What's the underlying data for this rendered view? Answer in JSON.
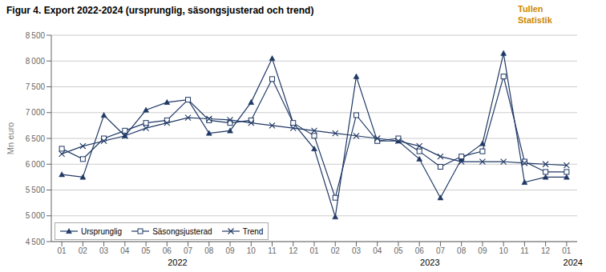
{
  "chart_data": {
    "type": "line",
    "title": "Figur 4. Export 2022-2024  (ursprunglig, säsongsjusterad  och trend)",
    "ylabel": "Mn euro",
    "categories": [
      "01",
      "02",
      "03",
      "04",
      "05",
      "06",
      "07",
      "08",
      "09",
      "10",
      "11",
      "12",
      "01",
      "02",
      "03",
      "04",
      "05",
      "06",
      "07",
      "08",
      "09",
      "10",
      "11",
      "12",
      "01"
    ],
    "series": [
      {
        "name": "Ursprunglig",
        "color": "#1F3864",
        "marker": "triangle",
        "values": [
          5800,
          5750,
          6950,
          6550,
          7050,
          7200,
          7250,
          6600,
          6650,
          7200,
          8050,
          6800,
          6300,
          4980,
          7700,
          6450,
          6450,
          6100,
          5350,
          6100,
          6400,
          8150,
          5650,
          5750,
          5750
        ]
      },
      {
        "name": "Säsongsjusterad",
        "color": "#1F3864",
        "marker": "square",
        "values": [
          6300,
          6100,
          6500,
          6650,
          6800,
          6850,
          7250,
          6850,
          6800,
          6850,
          7650,
          6800,
          6550,
          5350,
          6950,
          6450,
          6500,
          6250,
          5950,
          6150,
          6250,
          7700,
          6050,
          5850,
          5850
        ]
      },
      {
        "name": "Trend",
        "color": "#1F3864",
        "marker": "x",
        "values": [
          6200,
          6350,
          6450,
          6550,
          6700,
          6800,
          6900,
          6880,
          6860,
          6800,
          6750,
          6700,
          6650,
          6600,
          6550,
          6500,
          6450,
          6350,
          6150,
          6050,
          6050,
          6050,
          6020,
          6000,
          5980
        ]
      }
    ],
    "ylim": [
      4500,
      8500
    ],
    "yticks": [
      {
        "value": 4500,
        "label": "4 500"
      },
      {
        "value": 5000,
        "label": "5 000"
      },
      {
        "value": 5500,
        "label": "5 500"
      },
      {
        "value": 6000,
        "label": "6 000"
      },
      {
        "value": 6500,
        "label": "6 500"
      },
      {
        "value": 7000,
        "label": "7 000"
      },
      {
        "value": 7500,
        "label": "7 500"
      },
      {
        "value": 8000,
        "label": "8 000"
      },
      {
        "value": 8500,
        "label": "8 500"
      }
    ],
    "grid": true,
    "legend": "lower left",
    "annotations": [
      {
        "text": "Tullen\nStatistik",
        "color": "#CC8800"
      },
      {
        "text": "2022",
        "x": 5.5
      },
      {
        "text": "2023",
        "x": 17.5
      },
      {
        "text": "2024",
        "x": 24.3
      }
    ]
  }
}
